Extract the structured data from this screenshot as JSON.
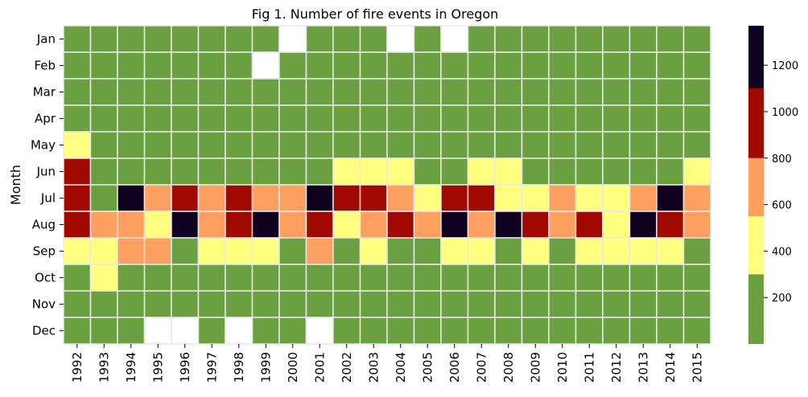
{
  "chart_data": {
    "type": "heatmap",
    "title": "Fig 1. Number of fire events in Oregon",
    "xlabel": "",
    "ylabel": "Month",
    "x_categories": [
      "1992",
      "1993",
      "1994",
      "1995",
      "1996",
      "1997",
      "1998",
      "1999",
      "2000",
      "2001",
      "2002",
      "2003",
      "2004",
      "2005",
      "2006",
      "2007",
      "2008",
      "2009",
      "2010",
      "2011",
      "2012",
      "2013",
      "2014",
      "2015"
    ],
    "y_categories": [
      "Jan",
      "Feb",
      "Mar",
      "Apr",
      "May",
      "Jun",
      "Jul",
      "Aug",
      "Sep",
      "Oct",
      "Nov",
      "Dec"
    ],
    "value_bins": [
      {
        "range": [
          0,
          300
        ],
        "color": "#6aa040"
      },
      {
        "range": [
          300,
          550
        ],
        "color": "#ffff80"
      },
      {
        "range": [
          550,
          800
        ],
        "color": "#ffa060"
      },
      {
        "range": [
          800,
          1100
        ],
        "color": "#a00800"
      },
      {
        "range": [
          1100,
          1370
        ],
        "color": "#100020"
      }
    ],
    "missing_color": "#ffffff",
    "values_note_bins": "cell values are approximate bin midpoints read from the colorbar; null = no data",
    "values": [
      [
        150,
        150,
        150,
        150,
        150,
        150,
        150,
        150,
        null,
        150,
        150,
        150,
        null,
        150,
        null,
        150,
        150,
        150,
        150,
        150,
        150,
        150,
        150,
        150
      ],
      [
        150,
        150,
        150,
        150,
        150,
        150,
        150,
        null,
        150,
        150,
        150,
        150,
        150,
        150,
        150,
        150,
        150,
        150,
        150,
        150,
        150,
        150,
        150,
        150
      ],
      [
        150,
        150,
        150,
        150,
        150,
        150,
        150,
        150,
        150,
        150,
        150,
        150,
        150,
        150,
        150,
        150,
        150,
        150,
        150,
        150,
        150,
        150,
        150,
        150
      ],
      [
        150,
        150,
        150,
        150,
        150,
        150,
        150,
        150,
        150,
        150,
        150,
        150,
        150,
        150,
        150,
        150,
        150,
        150,
        150,
        150,
        150,
        150,
        150,
        150
      ],
      [
        420,
        150,
        150,
        150,
        150,
        150,
        150,
        150,
        150,
        150,
        150,
        150,
        150,
        150,
        150,
        150,
        150,
        150,
        150,
        150,
        150,
        150,
        150,
        150
      ],
      [
        950,
        150,
        150,
        150,
        150,
        150,
        150,
        150,
        150,
        150,
        420,
        420,
        420,
        150,
        150,
        420,
        420,
        150,
        150,
        150,
        150,
        150,
        150,
        420
      ],
      [
        950,
        150,
        1250,
        680,
        950,
        680,
        950,
        680,
        680,
        1250,
        950,
        950,
        680,
        420,
        950,
        950,
        420,
        420,
        680,
        420,
        420,
        680,
        1250,
        680
      ],
      [
        950,
        680,
        680,
        420,
        1250,
        680,
        950,
        1250,
        680,
        950,
        420,
        680,
        950,
        680,
        1250,
        680,
        1250,
        950,
        680,
        950,
        420,
        1250,
        950,
        680
      ],
      [
        420,
        420,
        680,
        680,
        150,
        420,
        420,
        420,
        150,
        680,
        150,
        420,
        150,
        150,
        420,
        420,
        150,
        420,
        150,
        420,
        420,
        420,
        420,
        150
      ],
      [
        150,
        420,
        150,
        150,
        150,
        150,
        150,
        150,
        150,
        150,
        150,
        150,
        150,
        150,
        150,
        150,
        150,
        150,
        150,
        150,
        150,
        150,
        150,
        150
      ],
      [
        150,
        150,
        150,
        150,
        150,
        150,
        150,
        150,
        150,
        150,
        150,
        150,
        150,
        150,
        150,
        150,
        150,
        150,
        150,
        150,
        150,
        150,
        150,
        150
      ],
      [
        150,
        150,
        150,
        null,
        null,
        150,
        null,
        150,
        150,
        null,
        150,
        150,
        150,
        150,
        150,
        150,
        150,
        150,
        150,
        150,
        150,
        150,
        150,
        150
      ]
    ],
    "colorbar": {
      "min": 0,
      "max": 1370,
      "ticks": [
        200,
        400,
        600,
        800,
        1000,
        1200
      ]
    },
    "grid": false
  }
}
